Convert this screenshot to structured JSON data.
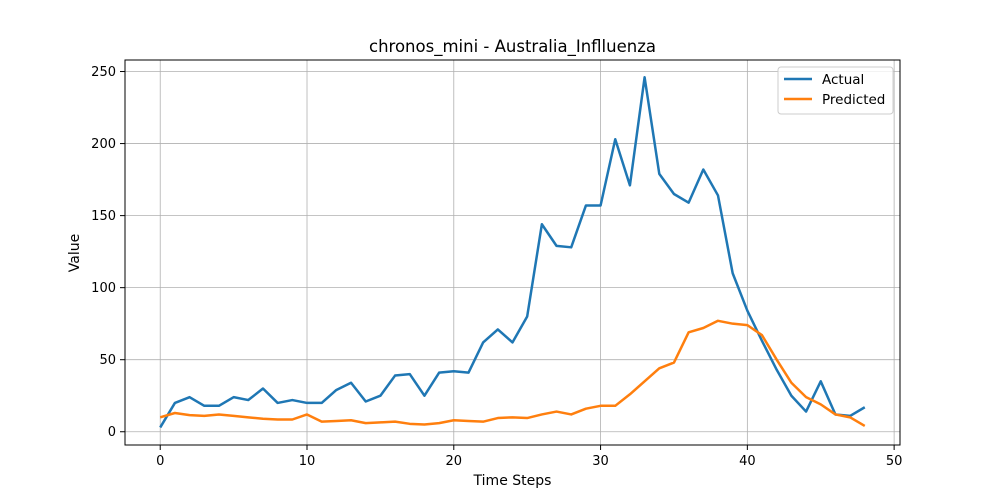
{
  "chart_data": {
    "type": "line",
    "title": "chronos_mini - Australia_Inflluenza",
    "xlabel": "Time Steps",
    "ylabel": "Value",
    "xlim": [
      -2.4,
      50.4
    ],
    "ylim": [
      -9.2,
      258.0
    ],
    "xticks": [
      0,
      10,
      20,
      30,
      40,
      50
    ],
    "xtick_labels": [
      "0",
      "10",
      "20",
      "30",
      "40",
      "50"
    ],
    "yticks": [
      0,
      50,
      100,
      150,
      200,
      250
    ],
    "ytick_labels": [
      "0",
      "50",
      "100",
      "150",
      "200",
      "250"
    ],
    "grid": true,
    "legend_position": "top-right",
    "x": [
      0,
      1,
      2,
      3,
      4,
      5,
      6,
      7,
      8,
      9,
      10,
      11,
      12,
      13,
      14,
      15,
      16,
      17,
      18,
      19,
      20,
      21,
      22,
      23,
      24,
      25,
      26,
      27,
      28,
      29,
      30,
      31,
      32,
      33,
      34,
      35,
      36,
      37,
      38,
      39,
      40,
      41,
      42,
      43,
      44,
      45,
      46,
      47,
      48
    ],
    "series": [
      {
        "name": "Actual",
        "color": "#1f77b4",
        "values": [
          3,
          20,
          24,
          18,
          18,
          24,
          22,
          30,
          20,
          22,
          20,
          20,
          29,
          34,
          21,
          25,
          39,
          40,
          25,
          41,
          42,
          41,
          62,
          71,
          62,
          80,
          144,
          129,
          128,
          157,
          157,
          203,
          171,
          246,
          179,
          165,
          159,
          182,
          164,
          110,
          84,
          63,
          43,
          25,
          14,
          35,
          12,
          11,
          17
        ]
      },
      {
        "name": "Predicted",
        "color": "#ff7f0e",
        "values": [
          10,
          13,
          11.5,
          11,
          12,
          11,
          10,
          9,
          8.5,
          8.5,
          12,
          7,
          7.5,
          8,
          6,
          6.5,
          7,
          5.5,
          5,
          6,
          8,
          7.5,
          7,
          9.5,
          10,
          9.5,
          12,
          14,
          12,
          16,
          18,
          18,
          26,
          35,
          44,
          48,
          69,
          72,
          77,
          75,
          74,
          67,
          50,
          34,
          24,
          19,
          12,
          10,
          4
        ]
      }
    ]
  }
}
